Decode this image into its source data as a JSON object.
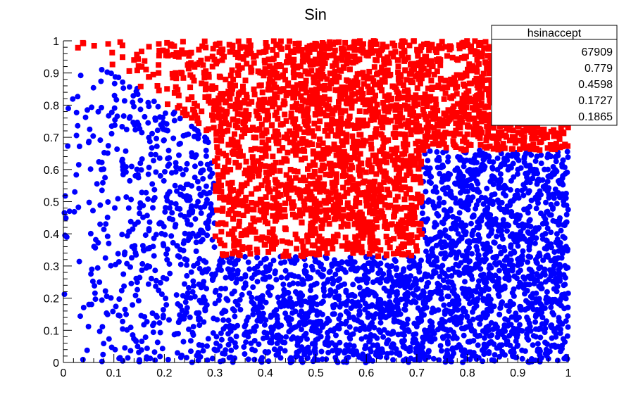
{
  "chart_data": {
    "type": "scatter",
    "title": "Sin",
    "xlabel": "",
    "ylabel": "",
    "xlim": [
      0,
      1
    ],
    "ylim": [
      0,
      1
    ],
    "x_ticks": [
      "0",
      "0.1",
      "0.2",
      "0.3",
      "0.4",
      "0.5",
      "0.6",
      "0.7",
      "0.8",
      "0.9",
      "1"
    ],
    "y_ticks": [
      "0",
      "0.1",
      "0.2",
      "0.3",
      "0.4",
      "0.5",
      "0.6",
      "0.7",
      "0.8",
      "0.9",
      "1"
    ],
    "grid": false,
    "series": [
      {
        "color": "#0000ff",
        "marker": "circle",
        "rule": "points under the red step band (rejected)"
      },
      {
        "color": "#ff0000",
        "marker": "square",
        "rule": "y > 1 - x for x < 0.3; y > 0.33 for 0.3 <= x < 0.71; y > 0.66 for x >= 0.71 (accepted)"
      }
    ],
    "accepted_region_steps": [
      {
        "x_from": 0.0,
        "x_to": 0.3,
        "y_min": "1 - x"
      },
      {
        "x_from": 0.3,
        "x_to": 0.71,
        "y_min": 0.33
      },
      {
        "x_from": 0.71,
        "x_to": 1.0,
        "y_min": 0.66
      }
    ],
    "stats_box": {
      "title": "hsinaccept",
      "placement": "top-right",
      "rows": [
        "67909",
        "0.779",
        "0.4598",
        "0.1727",
        "0.1865"
      ]
    }
  },
  "colors": {
    "accepted": "#ff0000",
    "rejected": "#0000ff",
    "axis": "#000000"
  }
}
